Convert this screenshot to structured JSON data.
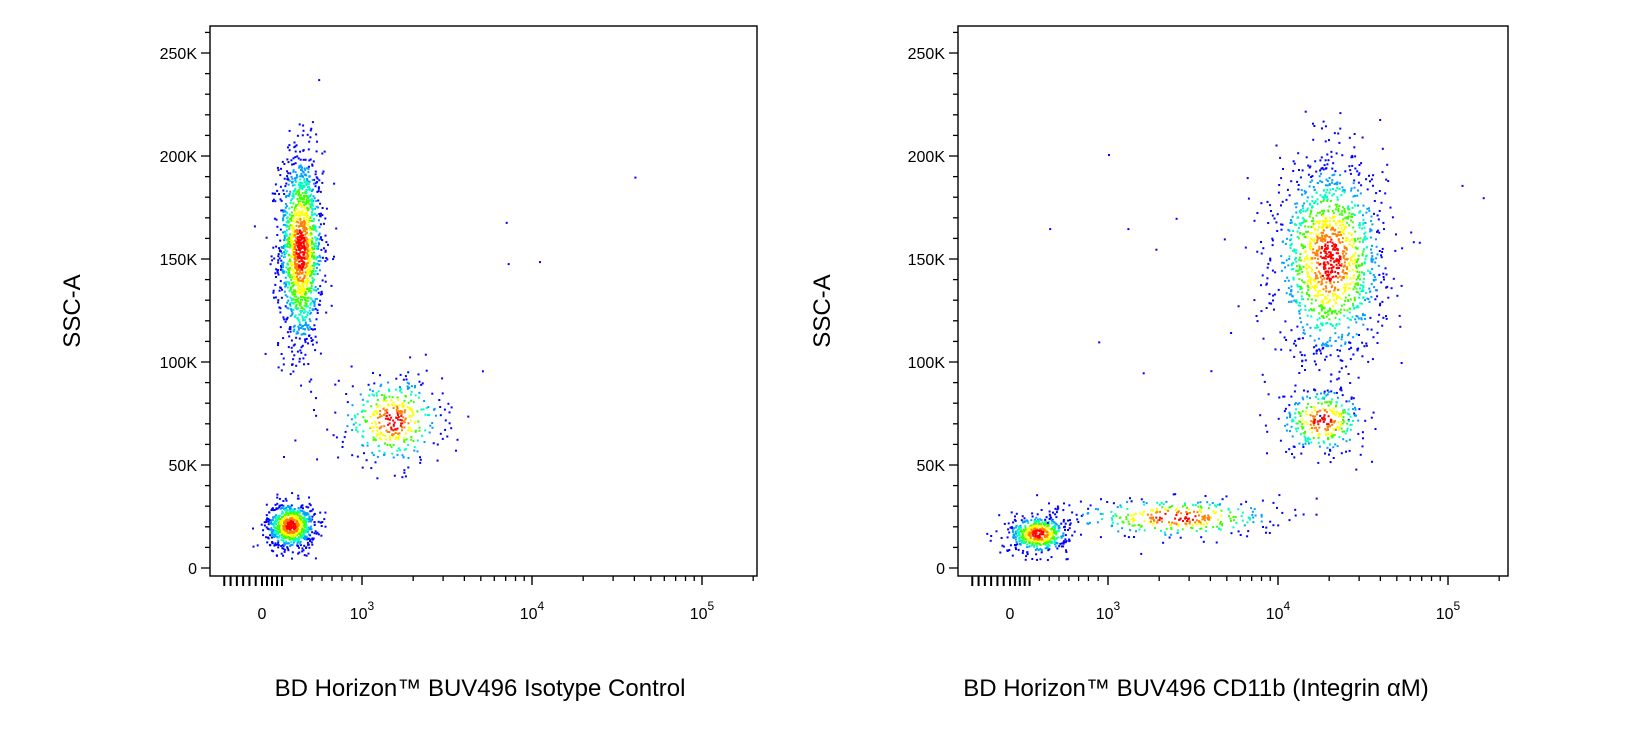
{
  "chart_data": [
    {
      "type": "scatter",
      "subtype": "flow cytometry density dot plot",
      "xlabel": "BD Horizon™ BUV496 Isotype Control",
      "ylabel": "SSC-A",
      "x_scale": "biexponential",
      "xlim": [
        -350,
        200000
      ],
      "ylim": [
        -5000,
        262144
      ],
      "x_ticks": [
        {
          "value": 0,
          "base": "0",
          "exp": ""
        },
        {
          "value": 1000,
          "base": "10",
          "exp": "3"
        },
        {
          "value": 10000,
          "base": "10",
          "exp": "4"
        },
        {
          "value": 100000,
          "base": "10",
          "exp": "5"
        }
      ],
      "y_ticks": [
        {
          "value": 0,
          "label": "0"
        },
        {
          "value": 50000,
          "label": "50K"
        },
        {
          "value": 100000,
          "label": "100K"
        },
        {
          "value": 150000,
          "label": "150K"
        },
        {
          "value": 200000,
          "label": "200K"
        },
        {
          "value": 250000,
          "label": "250K"
        }
      ],
      "populations": [
        {
          "x_center": 380,
          "x_spread": 110,
          "y_center": 155000,
          "y_spread": 24000,
          "weight": 0.55
        },
        {
          "x_center": 280,
          "x_spread": 120,
          "y_center": 21000,
          "y_spread": 5500,
          "weight": 0.3
        },
        {
          "x_center": 1500,
          "x_spread": 600,
          "y_center": 72000,
          "y_spread": 11000,
          "weight": 0.15
        }
      ],
      "outliers": [
        [
          40000,
          190000
        ],
        [
          7000,
          168000
        ],
        [
          7200,
          148000
        ],
        [
          11000,
          149000
        ]
      ],
      "grid": false
    },
    {
      "type": "scatter",
      "subtype": "flow cytometry density dot plot",
      "xlabel": "BD Horizon™ BUV496 CD11b (Integrin αM)",
      "ylabel": "SSC-A",
      "x_scale": "biexponential",
      "xlim": [
        -350,
        250000
      ],
      "ylim": [
        -5000,
        262144
      ],
      "x_ticks": [
        {
          "value": 0,
          "base": "0",
          "exp": ""
        },
        {
          "value": 1000,
          "base": "10",
          "exp": "3"
        },
        {
          "value": 10000,
          "base": "10",
          "exp": "4"
        },
        {
          "value": 100000,
          "base": "10",
          "exp": "5"
        }
      ],
      "y_ticks": [
        {
          "value": 0,
          "label": "0"
        },
        {
          "value": 50000,
          "label": "50K"
        },
        {
          "value": 100000,
          "label": "100K"
        },
        {
          "value": 150000,
          "label": "150K"
        },
        {
          "value": 200000,
          "label": "200K"
        },
        {
          "value": 250000,
          "label": "250K"
        }
      ],
      "populations": [
        {
          "x_center": 20000,
          "x_spread": 9000,
          "y_center": 150000,
          "y_spread": 24000,
          "weight": 0.55
        },
        {
          "x_center": 18000,
          "x_spread": 6000,
          "y_center": 72000,
          "y_spread": 8000,
          "weight": 0.12
        },
        {
          "x_center": 280,
          "x_spread": 150,
          "y_center": 17000,
          "y_spread": 4500,
          "weight": 0.2
        },
        {
          "x_center": 2500,
          "x_spread": 2500,
          "y_center": 25000,
          "y_spread": 5000,
          "weight": 0.13
        }
      ],
      "outliers": [
        [
          1000,
          201000
        ],
        [
          1300,
          165000
        ],
        [
          400,
          165000
        ],
        [
          1900,
          155000
        ],
        [
          2500,
          170000
        ],
        [
          4800,
          160000
        ],
        [
          900,
          110000
        ],
        [
          1600,
          95000
        ],
        [
          4000,
          96000
        ],
        [
          120000,
          186000
        ],
        [
          160000,
          180000
        ]
      ],
      "grid": false
    }
  ],
  "density_colors": [
    "#0000ff",
    "#00a0ff",
    "#00ffc0",
    "#40ff00",
    "#ffff00",
    "#ff8000",
    "#ff0000"
  ]
}
